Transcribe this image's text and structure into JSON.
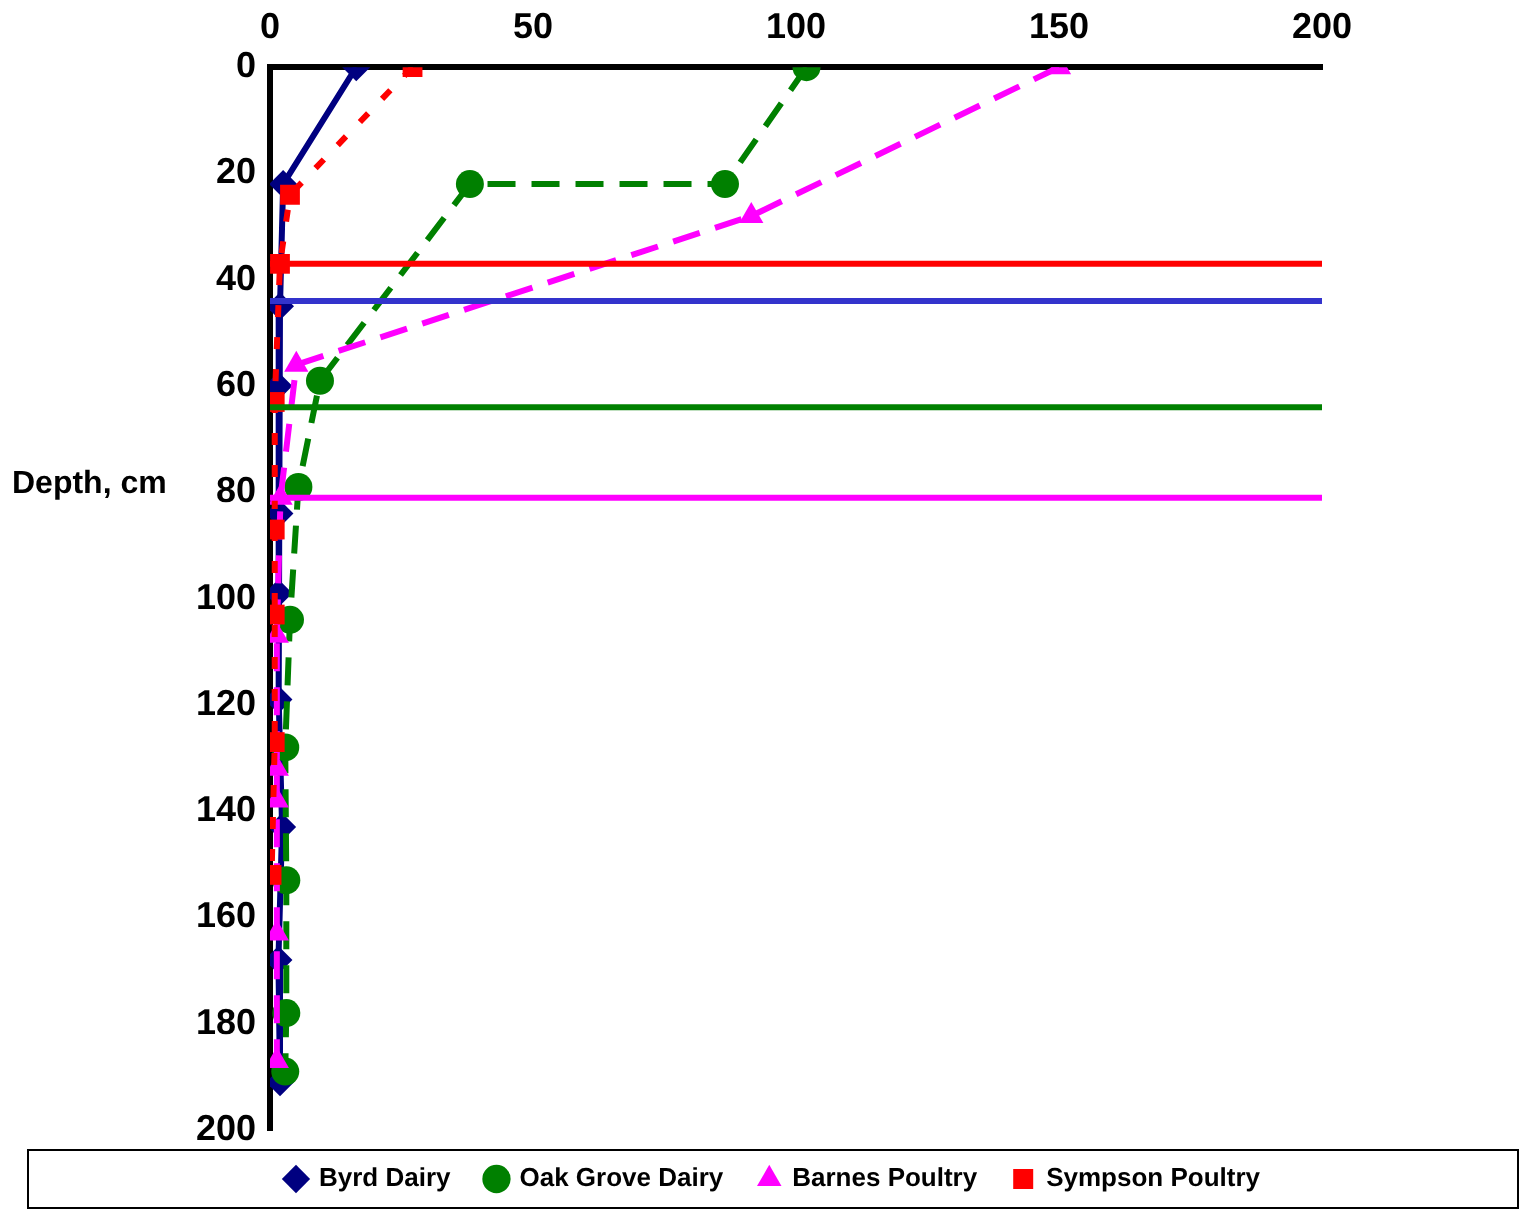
{
  "chart_data": {
    "type": "line",
    "ylabel": "Depth, cm",
    "xlim": [
      0,
      200
    ],
    "xticks": [
      0,
      50,
      100,
      150,
      200
    ],
    "ylim": [
      200,
      0
    ],
    "yticks": [
      0,
      20,
      40,
      60,
      80,
      100,
      120,
      140,
      160,
      180,
      200
    ],
    "grid": false,
    "legend": "bottom",
    "series": [
      {
        "name": "Byrd Dairy",
        "color": "#000080",
        "marker": "diamond",
        "line_style": "solid",
        "x": [
          16.4,
          2.5,
          1.9,
          1.6,
          1.8,
          1.6,
          1.6,
          2.3,
          1.6,
          1.9
        ],
        "values": [
          0,
          22,
          45,
          60,
          84,
          99,
          119,
          143,
          168,
          191
        ]
      },
      {
        "name": "Oak Grove Dairy",
        "color": "#008000",
        "marker": "circle",
        "line_style": "dashed",
        "x": [
          102,
          86.5,
          38,
          9.5,
          5.4,
          3.8,
          2.9,
          3.1,
          3.1,
          2.9
        ],
        "values": [
          0,
          22,
          22,
          59,
          79,
          104,
          128,
          153,
          178,
          189
        ]
      },
      {
        "name": "Barnes Poultry",
        "color": "#ff00ff",
        "marker": "triangle",
        "line_style": "dashed",
        "x": [
          150,
          91.5,
          5,
          2,
          1.3,
          1.3,
          1.3,
          1.3,
          1.3
        ],
        "values": [
          0,
          28,
          56,
          81,
          107,
          132,
          138,
          163,
          187
        ]
      },
      {
        "name": "Sympson Poultry",
        "color": "#ff0000",
        "marker": "square",
        "line_style": "dotted",
        "x": [
          27.1,
          3.8,
          1.9,
          0.9,
          0.9,
          0.9,
          0.9,
          0.3
        ],
        "values": [
          0,
          24,
          37,
          63,
          87,
          103,
          127,
          152
        ]
      }
    ],
    "ref_lines": [
      {
        "axis": "y",
        "value": 37,
        "color": "#ff0000"
      },
      {
        "axis": "y",
        "value": 44,
        "color": "#3333cc"
      },
      {
        "axis": "y",
        "value": 64,
        "color": "#008000"
      },
      {
        "axis": "y",
        "value": 81,
        "color": "#ff00ff"
      }
    ]
  }
}
